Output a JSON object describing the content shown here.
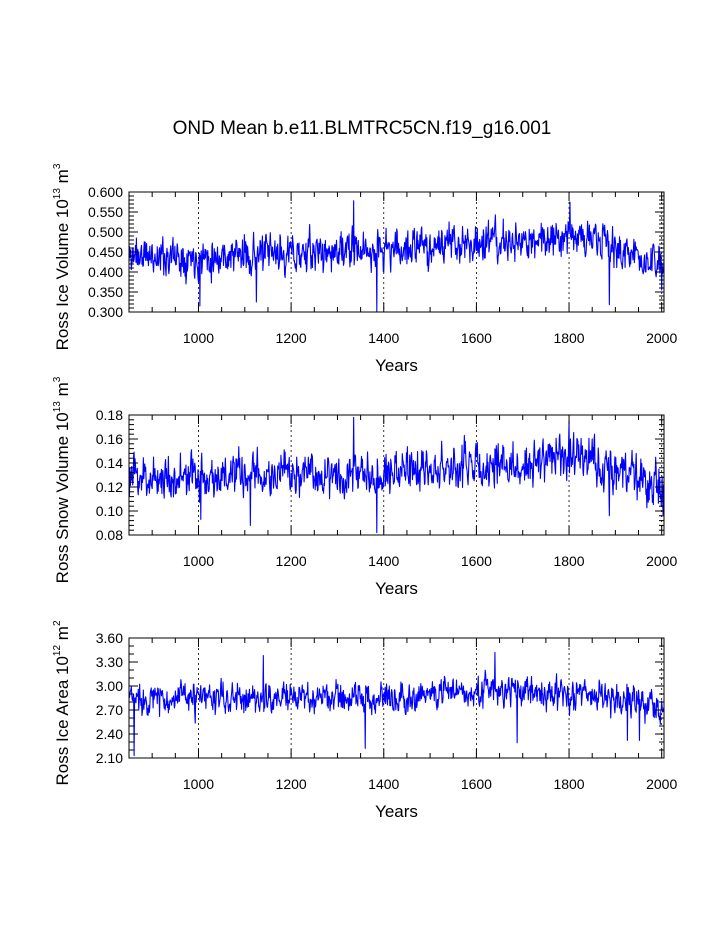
{
  "chart_data": {
    "title": "OND Mean b.e11.BLMTRC5CN.f19_g16.001",
    "x_range": [
      850,
      2005
    ],
    "x_ticks": [
      1000,
      1200,
      1400,
      1600,
      1800,
      2000
    ],
    "x_tick_labels": [
      "1000",
      "1200",
      "1400",
      "1600",
      "1800",
      "2000"
    ],
    "x_minor_step": 50,
    "series_color": "#0000ff",
    "panels": [
      {
        "type": "line",
        "name": "ice-volume",
        "ylabel_main": "Ross Ice Volume 10",
        "ylabel_exp": "13",
        "ylabel_unit": " m",
        "ylabel_unit_exp": "3",
        "xlabel": "Years",
        "ylim": [
          0.3,
          0.6
        ],
        "y_ticks": [
          0.3,
          0.35,
          0.4,
          0.45,
          0.5,
          0.55,
          0.6
        ],
        "y_tick_labels": [
          "0.300",
          "0.350",
          "0.400",
          "0.450",
          "0.500",
          "0.550",
          "0.600"
        ],
        "y_minor_step": 0.01,
        "mean_profile": [
          [
            850,
            0.44
          ],
          [
            1000,
            0.44
          ],
          [
            1200,
            0.445
          ],
          [
            1400,
            0.455
          ],
          [
            1600,
            0.475
          ],
          [
            1700,
            0.47
          ],
          [
            1800,
            0.5
          ],
          [
            1900,
            0.46
          ],
          [
            2005,
            0.41
          ]
        ],
        "noise": 0.032,
        "seed": 11,
        "events": [
          [
            1003,
            0.315
          ],
          [
            1125,
            0.325
          ],
          [
            1335,
            0.578
          ],
          [
            1385,
            0.302
          ],
          [
            1802,
            0.575
          ],
          [
            1887,
            0.318
          ],
          [
            866,
            0.485
          ],
          [
            2000,
            0.355
          ]
        ]
      },
      {
        "type": "line",
        "name": "snow-volume",
        "ylabel_main": "Ross Snow Volume 10",
        "ylabel_exp": "13",
        "ylabel_unit": " m",
        "ylabel_unit_exp": "3",
        "xlabel": "Years",
        "ylim": [
          0.08,
          0.18
        ],
        "y_ticks": [
          0.08,
          0.1,
          0.12,
          0.14,
          0.16,
          0.18
        ],
        "y_tick_labels": [
          "0.08",
          "0.10",
          "0.12",
          "0.14",
          "0.16",
          "0.18"
        ],
        "y_minor_step": 0.004,
        "mean_profile": [
          [
            850,
            0.128
          ],
          [
            1000,
            0.128
          ],
          [
            1200,
            0.13
          ],
          [
            1400,
            0.133
          ],
          [
            1600,
            0.138
          ],
          [
            1700,
            0.137
          ],
          [
            1800,
            0.148
          ],
          [
            1900,
            0.135
          ],
          [
            2005,
            0.118
          ]
        ],
        "noise": 0.012,
        "seed": 23,
        "events": [
          [
            1005,
            0.093
          ],
          [
            1112,
            0.088
          ],
          [
            1335,
            0.178
          ],
          [
            1385,
            0.082
          ],
          [
            1800,
            0.175
          ],
          [
            1887,
            0.096
          ],
          [
            2003,
            0.097
          ]
        ]
      },
      {
        "type": "line",
        "name": "ice-area",
        "ylabel_main": "Ross Ice Area 10",
        "ylabel_exp": "12",
        "ylabel_unit": " m",
        "ylabel_unit_exp": "2",
        "xlabel": "Years",
        "ylim": [
          2.1,
          3.6
        ],
        "y_ticks": [
          2.1,
          2.4,
          2.7,
          3.0,
          3.3,
          3.6
        ],
        "y_tick_labels": [
          "2.10",
          "2.40",
          "2.70",
          "3.00",
          "3.30",
          "3.60"
        ],
        "y_minor_step": 0.1,
        "mean_profile": [
          [
            850,
            2.85
          ],
          [
            1000,
            2.84
          ],
          [
            1200,
            2.85
          ],
          [
            1400,
            2.86
          ],
          [
            1600,
            2.95
          ],
          [
            1700,
            2.93
          ],
          [
            1800,
            2.9
          ],
          [
            1900,
            2.85
          ],
          [
            2005,
            2.7
          ]
        ],
        "noise": 0.13,
        "seed": 37,
        "events": [
          [
            861,
            2.13
          ],
          [
            1140,
            3.38
          ],
          [
            1360,
            2.22
          ],
          [
            1640,
            3.42
          ],
          [
            1688,
            2.29
          ],
          [
            1926,
            2.32
          ],
          [
            1952,
            2.32
          ]
        ]
      }
    ]
  }
}
